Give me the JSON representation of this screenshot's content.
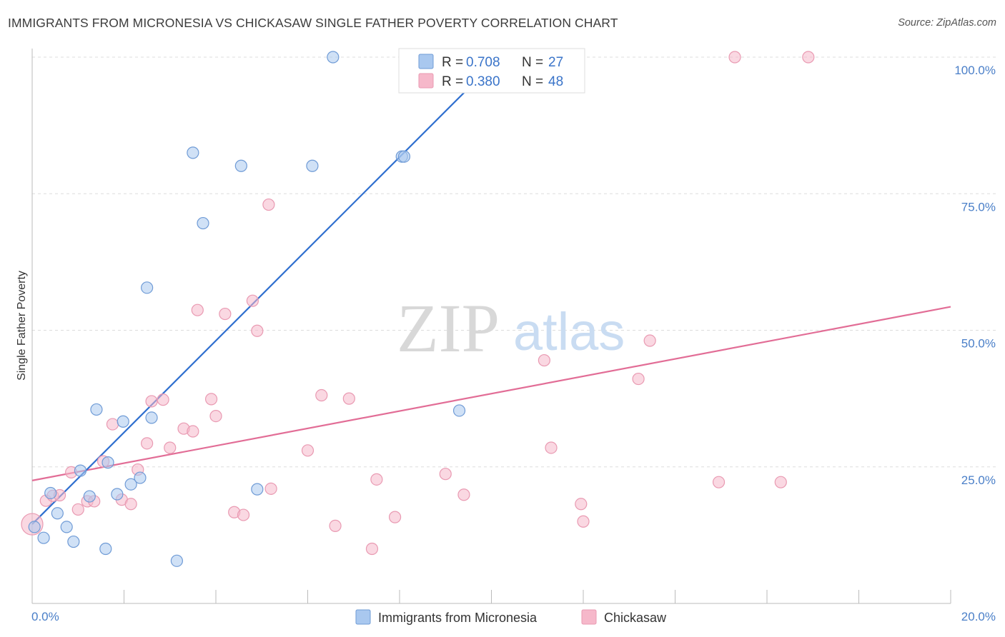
{
  "title": "IMMIGRANTS FROM MICRONESIA VS CHICKASAW SINGLE FATHER POVERTY CORRELATION CHART",
  "source": "Source: ZipAtlas.com",
  "watermark": {
    "zip": "ZIP",
    "atlas": "atlas"
  },
  "colors": {
    "blue_fill": "#a9c8ef",
    "blue_stroke": "#6f9bd6",
    "blue_line": "#2f6fcf",
    "pink_fill": "#f6b8ca",
    "pink_stroke": "#e99ab2",
    "pink_line": "#e26d96",
    "accent_text": "#4a7fc8",
    "grid": "#dddddd"
  },
  "legend": {
    "rows": [
      {
        "r_label": "R =",
        "r_value": "0.708",
        "n_label": "N =",
        "n_value": "27"
      },
      {
        "r_label": "R =",
        "r_value": "0.380",
        "n_label": "N =",
        "n_value": "48"
      }
    ]
  },
  "chart_data": {
    "type": "scatter",
    "title": "IMMIGRANTS FROM MICRONESIA VS CHICKASAW SINGLE FATHER POVERTY CORRELATION CHART",
    "xlabel": "",
    "ylabel": "Single Father Poverty",
    "xlim": [
      0,
      20
    ],
    "ylim": [
      0,
      100
    ],
    "x_tick_labels": [
      "0.0%",
      "20.0%"
    ],
    "y_tick_labels": [
      "25.0%",
      "50.0%",
      "75.0%",
      "100.0%"
    ],
    "y_ticks": [
      25,
      50,
      75,
      100
    ],
    "grid": true,
    "legend_position": "top-center and bottom",
    "series": [
      {
        "name": "Immigrants from Micronesia",
        "R": 0.708,
        "N": 27,
        "trend": {
          "x": [
            0.0,
            10.0
          ],
          "y": [
            14.5,
            98.5
          ]
        },
        "points": [
          [
            0.05,
            14.0
          ],
          [
            0.25,
            12.0
          ],
          [
            0.4,
            20.2
          ],
          [
            0.55,
            16.5
          ],
          [
            0.75,
            14.0
          ],
          [
            0.9,
            11.3
          ],
          [
            1.05,
            24.3
          ],
          [
            1.25,
            19.6
          ],
          [
            1.4,
            35.5
          ],
          [
            1.6,
            10.0
          ],
          [
            1.65,
            25.8
          ],
          [
            1.85,
            20.0
          ],
          [
            1.98,
            33.3
          ],
          [
            2.15,
            21.8
          ],
          [
            2.35,
            23.0
          ],
          [
            2.5,
            57.8
          ],
          [
            2.6,
            34.0
          ],
          [
            3.15,
            7.8
          ],
          [
            3.5,
            82.5
          ],
          [
            3.72,
            69.6
          ],
          [
            4.55,
            80.1
          ],
          [
            4.9,
            20.9
          ],
          [
            6.1,
            80.1
          ],
          [
            6.55,
            100.0
          ],
          [
            8.05,
            81.8
          ],
          [
            8.1,
            81.8
          ],
          [
            9.3,
            35.3
          ]
        ]
      },
      {
        "name": "Chickasaw",
        "R": 0.38,
        "N": 48,
        "trend": {
          "x": [
            0.0,
            20.0
          ],
          "y": [
            22.5,
            54.3
          ]
        },
        "points": [
          [
            0.0,
            14.5
          ],
          [
            0.3,
            18.8
          ],
          [
            0.45,
            19.7
          ],
          [
            0.6,
            19.8
          ],
          [
            0.85,
            24.0
          ],
          [
            1.0,
            17.2
          ],
          [
            1.2,
            18.7
          ],
          [
            1.35,
            18.7
          ],
          [
            1.55,
            26.0
          ],
          [
            1.75,
            32.8
          ],
          [
            1.95,
            19.0
          ],
          [
            2.15,
            18.2
          ],
          [
            2.3,
            24.5
          ],
          [
            2.5,
            29.3
          ],
          [
            2.6,
            37.0
          ],
          [
            2.85,
            37.3
          ],
          [
            3.0,
            28.5
          ],
          [
            3.3,
            32.0
          ],
          [
            3.5,
            31.5
          ],
          [
            3.6,
            53.7
          ],
          [
            3.9,
            37.4
          ],
          [
            4.0,
            34.3
          ],
          [
            4.2,
            53.0
          ],
          [
            4.4,
            16.7
          ],
          [
            4.6,
            16.2
          ],
          [
            4.8,
            55.4
          ],
          [
            4.9,
            49.9
          ],
          [
            5.15,
            73.0
          ],
          [
            5.2,
            21.0
          ],
          [
            6.0,
            28.0
          ],
          [
            6.3,
            38.1
          ],
          [
            6.6,
            14.2
          ],
          [
            6.9,
            37.5
          ],
          [
            7.4,
            10.0
          ],
          [
            7.5,
            22.7
          ],
          [
            7.9,
            15.8
          ],
          [
            9.0,
            23.7
          ],
          [
            9.4,
            19.9
          ],
          [
            11.15,
            44.5
          ],
          [
            11.3,
            28.5
          ],
          [
            11.95,
            18.2
          ],
          [
            12.0,
            15.0
          ],
          [
            13.2,
            41.1
          ],
          [
            13.45,
            48.1
          ],
          [
            14.95,
            22.2
          ],
          [
            15.3,
            100.0
          ],
          [
            16.3,
            22.2
          ],
          [
            16.9,
            100.0
          ]
        ]
      }
    ]
  }
}
